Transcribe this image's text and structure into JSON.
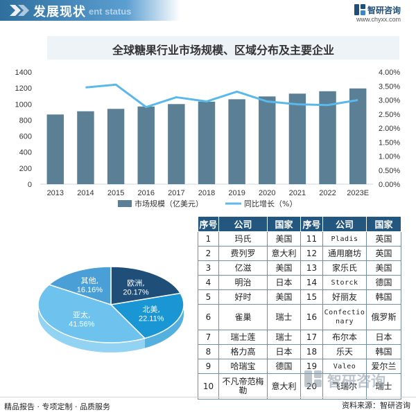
{
  "header": {
    "section_title": "发展现状",
    "section_subtitle": "ent status",
    "brand_name": "智研咨询",
    "brand_url": "www.chyxx.com"
  },
  "chart_title": "全球糖果行业市场规模、区域分布及主要企业",
  "colors": {
    "bar": "#5b7f95",
    "line": "#5bb8ea",
    "title_band": "#eef3f8",
    "table_header": "#23577f",
    "pie": [
      "#1f4e79",
      "#1b96d4",
      "#6ec3ee",
      "#4a9fd6"
    ]
  },
  "chart_data": [
    {
      "type": "bar",
      "categories": [
        "2013",
        "2014",
        "2015",
        "2016",
        "2017",
        "2018",
        "2019",
        "2020",
        "2021",
        "2022",
        "2023E"
      ],
      "series": [
        {
          "name": "市场规模（亿美元）",
          "type": "bar",
          "axis": "left",
          "values": [
            870,
            910,
            940,
            970,
            1000,
            1030,
            1060,
            1095,
            1130,
            1160,
            1195
          ]
        },
        {
          "name": "同比增长（%）",
          "type": "line",
          "axis": "right",
          "values": [
            null,
            3.45,
            3.55,
            2.75,
            3.1,
            2.95,
            3.3,
            2.95,
            2.85,
            2.82,
            3.0
          ]
        }
      ],
      "ylim": [
        0,
        1400
      ],
      "yticks": [
        "0",
        "200",
        "400",
        "600",
        "800",
        "1000",
        "1200",
        "1400"
      ],
      "y2lim": [
        0,
        4
      ],
      "y2ticks": [
        "0.00%",
        "0.50%",
        "1.00%",
        "1.50%",
        "2.00%",
        "2.50%",
        "3.00%",
        "3.50%",
        "4.00%"
      ],
      "legend": "bottom",
      "grid": false
    },
    {
      "type": "pie",
      "slices": [
        {
          "name": "欧洲",
          "value": 20.17,
          "label": "20.17%"
        },
        {
          "name": "北美",
          "value": 22.11,
          "label": "22.11%"
        },
        {
          "name": "亚太",
          "value": 41.56,
          "label": "41.56%"
        },
        {
          "name": "其他",
          "value": 16.16,
          "label": "16.16%"
        }
      ]
    }
  ],
  "table": {
    "headers": [
      "序号",
      "公司",
      "国家",
      "序号",
      "公司",
      "国家"
    ],
    "rows": [
      [
        "1",
        "玛氏",
        "美国",
        "11",
        "Pladis",
        "英国"
      ],
      [
        "2",
        "费列罗",
        "意大利",
        "12",
        "通用磨坊",
        "英国"
      ],
      [
        "3",
        "亿滋",
        "美国",
        "13",
        "家乐氏",
        "美国"
      ],
      [
        "4",
        "明治",
        "日本",
        "14",
        "Storck",
        "德国"
      ],
      [
        "5",
        "好时",
        "美国",
        "15",
        "好丽友",
        "韩国"
      ],
      [
        "6",
        "雀巢",
        "瑞士",
        "16",
        "Confectionary",
        "俄罗斯"
      ],
      [
        "7",
        "瑞士莲",
        "瑞士",
        "17",
        "布尔本",
        "日本"
      ],
      [
        "8",
        "格力高",
        "日本",
        "18",
        "乐天",
        "韩国"
      ],
      [
        "9",
        "哈瑞宝",
        "德国",
        "19",
        "Valeo",
        "爱尔兰"
      ],
      [
        "10",
        "不凡帝范梅勒",
        "意大利",
        "20",
        "飞瑞尔",
        "瑞士"
      ]
    ]
  },
  "footer": {
    "left": "精品报告 · 专项定制 · 品质服务",
    "right": "资料来源：智研咨询"
  },
  "watermark": "智研咨询"
}
